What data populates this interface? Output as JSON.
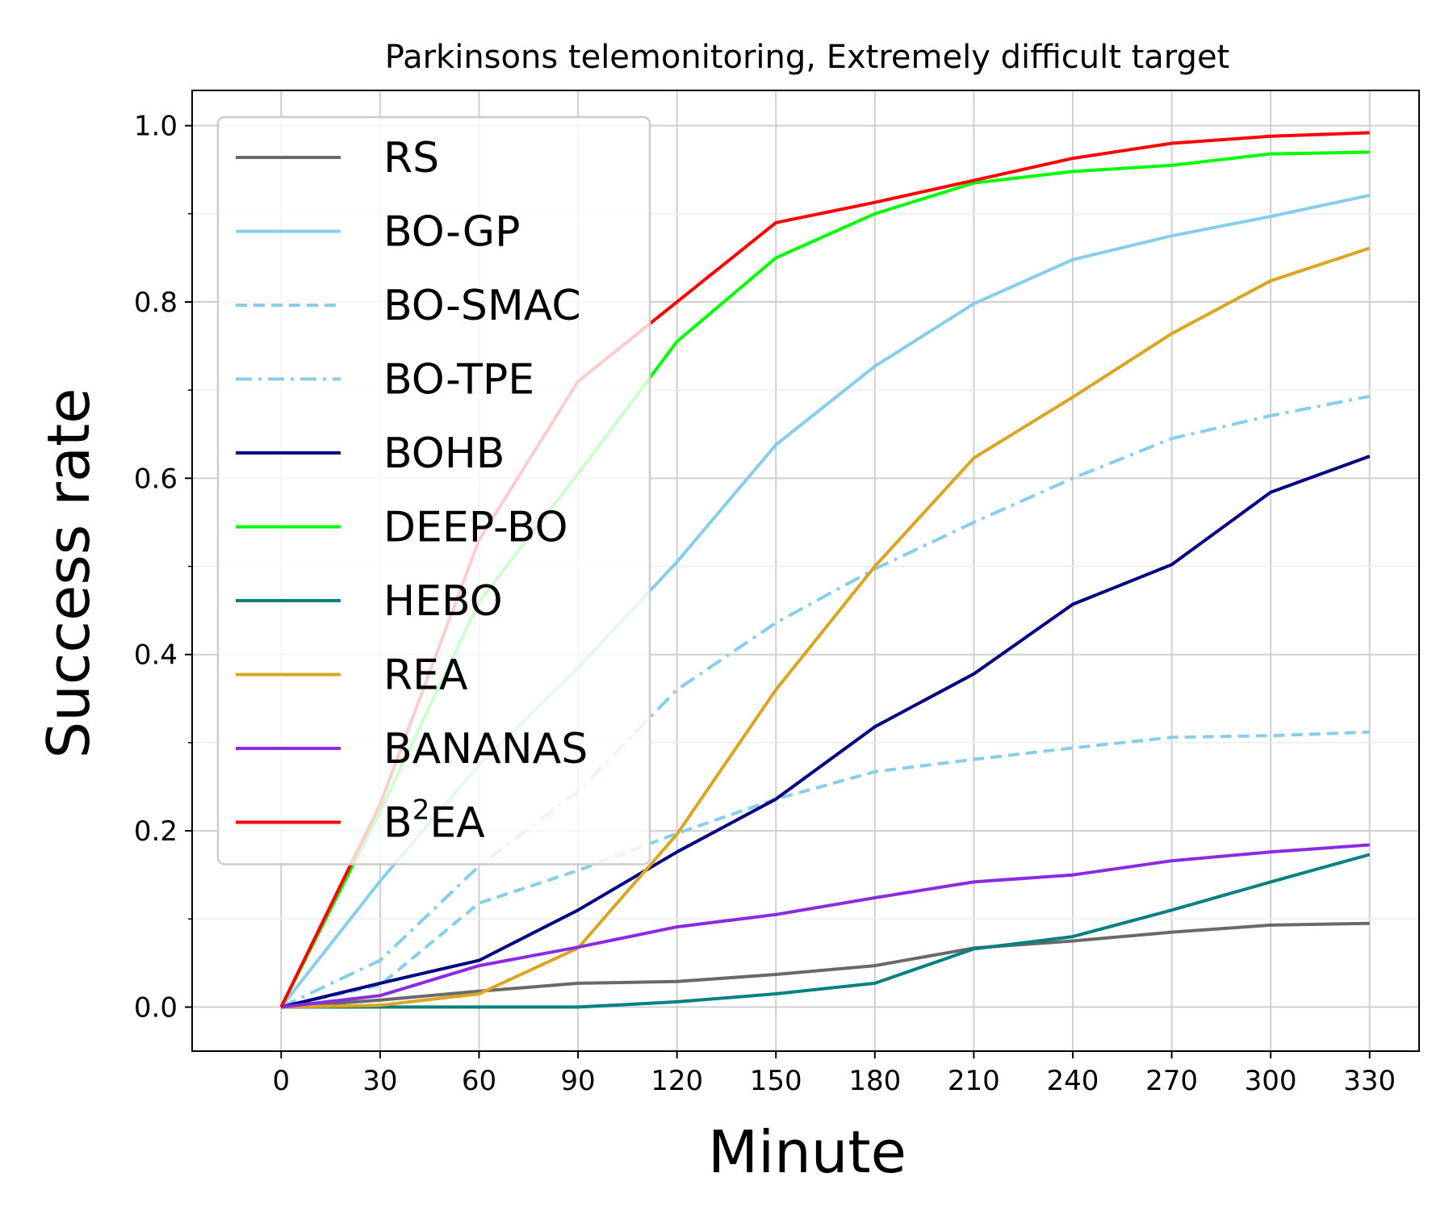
{
  "chart_data": {
    "type": "line",
    "title": "Parkinsons telemonitoring, Extremely difficult target",
    "xlabel": "Minute",
    "ylabel": "Success rate",
    "xlim": [
      -27,
      345
    ],
    "ylim": [
      -0.05,
      1.04
    ],
    "xticks": [
      0,
      30,
      60,
      90,
      120,
      150,
      180,
      210,
      240,
      270,
      300,
      330
    ],
    "xtick_labels": [
      "0",
      "30",
      "60",
      "90",
      "120",
      "150",
      "180",
      "210",
      "240",
      "270",
      "300",
      "330"
    ],
    "yticks": [
      0.0,
      0.2,
      0.4,
      0.6,
      0.8,
      1.0
    ],
    "ytick_labels": [
      "0.0",
      "0.2",
      "0.4",
      "0.6",
      "0.8",
      "1.0"
    ],
    "y_minor_ticks": [
      0.1,
      0.3,
      0.5,
      0.7,
      0.9
    ],
    "grid": true,
    "legend_position": "upper-left",
    "x": [
      0,
      30,
      60,
      90,
      120,
      150,
      180,
      210,
      240,
      270,
      300,
      330
    ],
    "series": [
      {
        "name": "RS",
        "label_base": "RS",
        "label_sup": "",
        "label_rest": "",
        "color": "#696969",
        "dash": "solid",
        "values": [
          0.0,
          0.008,
          0.018,
          0.027,
          0.029,
          0.037,
          0.047,
          0.067,
          0.075,
          0.085,
          0.093,
          0.095
        ]
      },
      {
        "name": "BO-GP",
        "label_base": "BO-GP",
        "label_sup": "",
        "label_rest": "",
        "color": "#87ceeb",
        "dash": "solid",
        "values": [
          0.0,
          0.143,
          0.275,
          0.385,
          0.505,
          0.638,
          0.727,
          0.798,
          0.848,
          0.875,
          0.897,
          0.921
        ]
      },
      {
        "name": "BO-SMAC",
        "label_base": "BO-SMAC",
        "label_sup": "",
        "label_rest": "",
        "color": "#87ceeb",
        "dash": "dashed",
        "values": [
          0.0,
          0.025,
          0.118,
          0.155,
          0.197,
          0.236,
          0.267,
          0.281,
          0.294,
          0.306,
          0.308,
          0.312
        ]
      },
      {
        "name": "BO-TPE",
        "label_base": "BO-TPE",
        "label_sup": "",
        "label_rest": "",
        "color": "#87ceeb",
        "dash": "dashdot",
        "values": [
          0.0,
          0.053,
          0.16,
          0.245,
          0.36,
          0.436,
          0.497,
          0.55,
          0.6,
          0.645,
          0.671,
          0.693
        ]
      },
      {
        "name": "BOHB",
        "label_base": "BOHB",
        "label_sup": "",
        "label_rest": "",
        "color": "#000080",
        "dash": "solid",
        "values": [
          0.0,
          0.027,
          0.053,
          0.11,
          0.176,
          0.236,
          0.318,
          0.378,
          0.457,
          0.502,
          0.584,
          0.625
        ]
      },
      {
        "name": "DEEP-BO",
        "label_base": "DEEP-BO",
        "label_sup": "",
        "label_rest": "",
        "color": "#00ff00",
        "dash": "solid",
        "values": [
          0.0,
          0.222,
          0.46,
          0.605,
          0.755,
          0.85,
          0.9,
          0.935,
          0.948,
          0.955,
          0.968,
          0.97
        ]
      },
      {
        "name": "HEBO",
        "label_base": "HEBO",
        "label_sup": "",
        "label_rest": "",
        "color": "#008080",
        "dash": "solid",
        "values": [
          0.0,
          0.0,
          0.0,
          0.0,
          0.006,
          0.015,
          0.027,
          0.066,
          0.08,
          0.11,
          0.142,
          0.173
        ]
      },
      {
        "name": "REA",
        "label_base": "REA",
        "label_sup": "",
        "label_rest": "",
        "color": "#daa520",
        "dash": "solid",
        "values": [
          0.0,
          0.002,
          0.015,
          0.067,
          0.196,
          0.36,
          0.5,
          0.623,
          0.692,
          0.764,
          0.824,
          0.861
        ]
      },
      {
        "name": "BANANAS",
        "label_base": "BANANAS",
        "label_sup": "",
        "label_rest": "",
        "color": "#8a2be2",
        "dash": "solid",
        "values": [
          0.0,
          0.013,
          0.047,
          0.068,
          0.091,
          0.105,
          0.124,
          0.142,
          0.15,
          0.166,
          0.176,
          0.184
        ]
      },
      {
        "name": "B2EA",
        "label_base": "B",
        "label_sup": "2",
        "label_rest": "EA",
        "color": "#ff0000",
        "dash": "solid",
        "values": [
          0.0,
          0.23,
          0.53,
          0.71,
          0.8,
          0.89,
          0.913,
          0.938,
          0.963,
          0.98,
          0.988,
          0.992
        ]
      }
    ]
  }
}
